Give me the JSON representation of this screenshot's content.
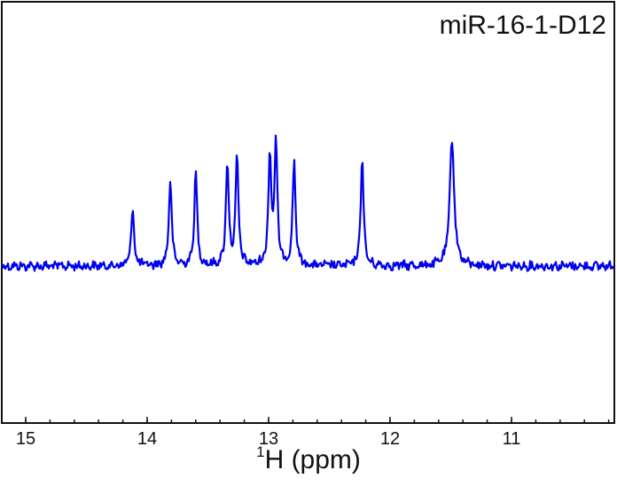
{
  "chart_data": {
    "type": "line",
    "title": "",
    "annotation": "miR-16-1-D12",
    "xlabel_sup": "1",
    "xlabel_main": "H (ppm)",
    "ylabel": "",
    "x_reversed": true,
    "xlim": [
      15.2,
      10.15
    ],
    "x_ticks": [
      15,
      14,
      13,
      12,
      11
    ],
    "x_tick_labels": [
      "15",
      "14",
      "13",
      "12",
      "11"
    ],
    "x_minor_tick_step": 0.2,
    "grid": false,
    "legend": null,
    "line_color": "#0000ee",
    "baseline": 0,
    "peaks": [
      {
        "ppm": 14.12,
        "intensity": 0.46
      },
      {
        "ppm": 13.81,
        "intensity": 0.68
      },
      {
        "ppm": 13.6,
        "intensity": 0.74
      },
      {
        "ppm": 13.34,
        "intensity": 0.82
      },
      {
        "ppm": 13.26,
        "intensity": 0.85
      },
      {
        "ppm": 12.99,
        "intensity": 0.86
      },
      {
        "ppm": 12.94,
        "intensity": 0.95
      },
      {
        "ppm": 12.79,
        "intensity": 0.83
      },
      {
        "ppm": 12.23,
        "intensity": 0.86
      },
      {
        "ppm": 11.49,
        "intensity": 1.0
      }
    ]
  }
}
